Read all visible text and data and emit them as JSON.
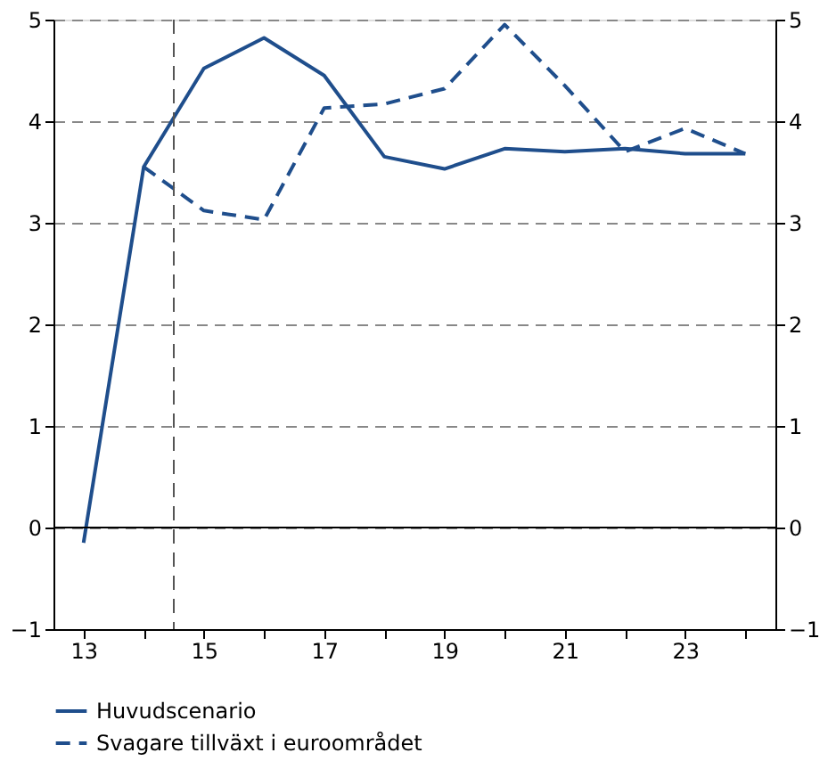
{
  "chart_data": {
    "type": "line",
    "x": [
      13,
      14,
      15,
      16,
      17,
      18,
      19,
      20,
      21,
      22,
      23,
      24
    ],
    "series": [
      {
        "name": "Huvudscenario",
        "color": "#1f4e8c",
        "line_style": "solid",
        "values": [
          -0.15,
          3.55,
          4.52,
          4.82,
          4.45,
          3.65,
          3.53,
          3.73,
          3.7,
          3.73,
          3.68,
          3.68
        ]
      },
      {
        "name": "Svagare tillväxt i euroområdet",
        "color": "#1f4e8c",
        "line_style": "dashed",
        "values": [
          null,
          3.55,
          3.12,
          3.03,
          4.13,
          4.17,
          4.32,
          4.95,
          4.35,
          3.7,
          3.93,
          3.68
        ]
      }
    ],
    "xlim": [
      12.5,
      24.5
    ],
    "xticks": [
      13,
      {
        "value": 14,
        "label": null
      },
      15,
      {
        "value": 16,
        "label": null
      },
      17,
      {
        "value": 18,
        "label": null
      },
      19,
      {
        "value": 20,
        "label": null
      },
      21,
      {
        "value": 22,
        "label": null
      },
      23,
      {
        "value": 24,
        "label": null
      }
    ],
    "ylim": [
      -1,
      5
    ],
    "yticks": [
      -1,
      0,
      1,
      2,
      3,
      4,
      5
    ],
    "y2lim": [
      -1,
      5
    ],
    "y2ticks": [
      -1,
      0,
      1,
      2,
      3,
      4,
      5
    ],
    "ref_lines": [
      {
        "axis": "x",
        "value": 14.5,
        "color": "#555555",
        "line_style": "dashed"
      },
      {
        "axis": "y",
        "value": 0,
        "color": "#000000",
        "line_style": "solid"
      }
    ],
    "grid": "y",
    "legend": "bottom",
    "marker": "none"
  }
}
